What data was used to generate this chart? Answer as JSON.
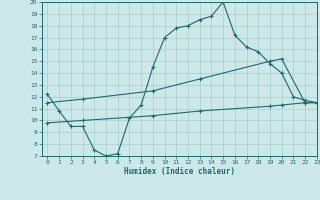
{
  "xlabel": "Humidex (Indice chaleur)",
  "ylabel": "",
  "xlim": [
    -0.5,
    23
  ],
  "ylim": [
    7,
    20
  ],
  "xticks": [
    0,
    1,
    2,
    3,
    4,
    5,
    6,
    7,
    8,
    9,
    10,
    11,
    12,
    13,
    14,
    15,
    16,
    17,
    18,
    19,
    20,
    21,
    22,
    23
  ],
  "yticks": [
    7,
    8,
    9,
    10,
    11,
    12,
    13,
    14,
    15,
    16,
    17,
    18,
    19,
    20
  ],
  "bg_color": "#cde8e8",
  "line_color": "#1a6b6b",
  "grid_color": "#aacece",
  "curve1_x": [
    0,
    1,
    2,
    3,
    4,
    5,
    6,
    7,
    8,
    9,
    10,
    11,
    12,
    13,
    14,
    15,
    16,
    17,
    18,
    19,
    20,
    21,
    22,
    23
  ],
  "curve1_y": [
    12.2,
    10.8,
    9.5,
    9.5,
    7.5,
    7.0,
    7.2,
    10.2,
    11.3,
    14.5,
    17.0,
    17.8,
    18.0,
    18.5,
    18.8,
    20.0,
    17.2,
    16.2,
    15.8,
    14.8,
    14.0,
    12.0,
    11.7,
    11.5
  ],
  "curve2_x": [
    0,
    3,
    9,
    13,
    19,
    20,
    22,
    23
  ],
  "curve2_y": [
    11.5,
    11.8,
    12.5,
    13.5,
    15.0,
    15.2,
    11.5,
    11.5
  ],
  "curve3_x": [
    0,
    3,
    9,
    13,
    19,
    20,
    22,
    23
  ],
  "curve3_y": [
    9.8,
    10.0,
    10.4,
    10.8,
    11.2,
    11.3,
    11.5,
    11.5
  ]
}
